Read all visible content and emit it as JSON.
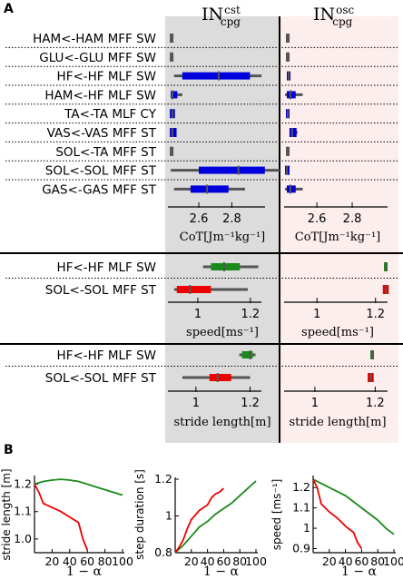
{
  "panel_a": {
    "letter": "A",
    "col1_title_main": "IN",
    "col1_title_sup": "cst",
    "col1_title_sub": "cpg",
    "col2_title_main": "IN",
    "col2_title_sup": "osc",
    "col2_title_sub": "cpg",
    "colors": {
      "left_bg": "#dcdcdc",
      "right_bg": "#fdeeee",
      "whisker": "#555555"
    }
  },
  "panel_b": {
    "letter": "B"
  },
  "chart_data": [
    {
      "type": "box",
      "group": "CoT",
      "xlabel": "CoT[Jm⁻¹kg⁻¹]",
      "xticks": [
        "2.6",
        "2.8"
      ],
      "rows": [
        {
          "label": "HAM<-HAM MFF SW",
          "color": "#555555",
          "left": {
            "whisker": [
              2.435,
              2.435
            ],
            "box": [
              2.43,
              2.44
            ],
            "median": 2.435
          },
          "right": {
            "whisker": [
              2.435,
              2.435
            ],
            "box": [
              2.43,
              2.44
            ],
            "median": 2.435
          }
        },
        {
          "label": "GLU<-GLU MFF SW",
          "color": "#555555",
          "left": {
            "whisker": [
              2.435,
              2.435
            ],
            "box": [
              2.43,
              2.44
            ],
            "median": 2.435
          },
          "right": {
            "whisker": [
              2.435,
              2.435
            ],
            "box": [
              2.43,
              2.44
            ],
            "median": 2.435
          }
        },
        {
          "label": "HF<-HF MLF SW",
          "color": "#0000dd",
          "left": {
            "whisker": [
              2.45,
              2.98
            ],
            "box": [
              2.5,
              2.91
            ],
            "median": 2.72
          },
          "right": {
            "whisker": [
              2.44,
              2.44
            ],
            "box": [
              2.435,
              2.445
            ],
            "median": 2.44
          }
        },
        {
          "label": "HAM<-HF MLF SW",
          "color": "#0000dd",
          "left": {
            "whisker": [
              2.43,
              2.5
            ],
            "box": [
              2.43,
              2.47
            ],
            "median": 2.44
          },
          "right": {
            "whisker": [
              2.42,
              2.52
            ],
            "box": [
              2.43,
              2.48
            ],
            "median": 2.45
          }
        },
        {
          "label": "TA<-TA MLF CY",
          "color": "#0000dd",
          "left": {
            "whisker": [
              2.43,
              2.45
            ],
            "box": [
              2.43,
              2.45
            ],
            "median": 2.44
          },
          "right": {
            "whisker": [
              2.435,
              2.435
            ],
            "box": [
              2.43,
              2.44
            ],
            "median": 2.435
          }
        },
        {
          "label": "VAS<-VAS MFF ST",
          "color": "#0000dd",
          "left": {
            "whisker": [
              2.43,
              2.46
            ],
            "box": [
              2.43,
              2.46
            ],
            "median": 2.44
          },
          "right": {
            "whisker": [
              2.45,
              2.49
            ],
            "box": [
              2.45,
              2.48
            ],
            "median": 2.46
          }
        },
        {
          "label": "SOL<-TA MFF ST",
          "color": "#555555",
          "left": {
            "whisker": [
              2.435,
              2.435
            ],
            "box": [
              2.43,
              2.44
            ],
            "median": 2.435
          },
          "right": {
            "whisker": [
              2.435,
              2.435
            ],
            "box": [
              2.43,
              2.44
            ],
            "median": 2.435
          }
        },
        {
          "label": "SOL<-SOL MFF ST",
          "color": "#0000dd",
          "left": {
            "whisker": [
              2.43,
              3.09
            ],
            "box": [
              2.6,
              3.0
            ],
            "median": 2.84
          },
          "right": {
            "whisker": [
              2.42,
              2.44
            ],
            "box": [
              2.425,
              2.44
            ],
            "median": 2.43
          }
        },
        {
          "label": "GAS<-GAS MFF ST",
          "color": "#0000dd",
          "left": {
            "whisker": [
              2.45,
              2.88
            ],
            "box": [
              2.55,
              2.78
            ],
            "median": 2.65
          },
          "right": {
            "whisker": [
              2.42,
              2.52
            ],
            "box": [
              2.43,
              2.48
            ],
            "median": 2.45
          }
        }
      ]
    },
    {
      "type": "box",
      "group": "speed",
      "xlabel": "speed[ms⁻¹]",
      "xticks": [
        "1",
        "1.2"
      ],
      "rows": [
        {
          "label": "HF<-HF MLF SW",
          "color": "#1a8a1a",
          "left": {
            "whisker": [
              1.02,
              1.23
            ],
            "box": [
              1.05,
              1.16
            ],
            "median": 1.1
          },
          "right": {
            "whisker": [
              1.235,
              1.235
            ],
            "box": [
              1.232,
              1.238
            ],
            "median": 1.235
          }
        },
        {
          "label": "SOL<-SOL MFF ST",
          "color": "#ee0000",
          "left": {
            "whisker": [
              0.91,
              1.19
            ],
            "box": [
              0.92,
              1.05
            ],
            "median": 0.97
          },
          "right": {
            "whisker": [
              1.23,
              1.24
            ],
            "box": [
              1.228,
              1.242
            ],
            "median": 1.235
          }
        }
      ]
    },
    {
      "type": "box",
      "group": "stride length",
      "xlabel": "stride length[m]",
      "xticks": [
        "1",
        "1.2"
      ],
      "rows": [
        {
          "label": "HF<-HF MLF SW",
          "color": "#1a8a1a",
          "left": {
            "whisker": [
              1.16,
              1.22
            ],
            "box": [
              1.17,
              1.21
            ],
            "median": 1.2
          },
          "right": {
            "whisker": [
              1.19,
              1.19
            ],
            "box": [
              1.187,
              1.193
            ],
            "median": 1.19
          }
        },
        {
          "label": "SOL<-SOL MFF ST",
          "color": "#ee0000",
          "left": {
            "whisker": [
              0.95,
              1.2
            ],
            "box": [
              1.05,
              1.13
            ],
            "median": 1.08
          },
          "right": {
            "whisker": [
              1.18,
              1.19
            ],
            "box": [
              1.178,
              1.192
            ],
            "median": 1.185
          }
        }
      ]
    },
    {
      "type": "line",
      "xlabel": "1 − α",
      "ylabel": "stride length [m]",
      "xlim": [
        0,
        100
      ],
      "ylim": [
        0.95,
        1.225
      ],
      "xticks": [
        20,
        40,
        60,
        80,
        100
      ],
      "yticks": [
        1.0,
        1.1,
        1.2
      ],
      "ytick_labels": [
        "1.0",
        "1.1",
        "1.2"
      ],
      "series": [
        {
          "color": "#1a8a1a",
          "x": [
            0,
            10,
            20,
            30,
            40,
            50,
            60,
            70,
            80,
            90,
            100
          ],
          "y": [
            1.2,
            1.21,
            1.215,
            1.218,
            1.215,
            1.21,
            1.2,
            1.19,
            1.18,
            1.17,
            1.16
          ]
        },
        {
          "color": "#ee0000",
          "x": [
            0,
            5,
            10,
            20,
            30,
            40,
            50,
            55,
            60
          ],
          "y": [
            1.2,
            1.17,
            1.13,
            1.115,
            1.1,
            1.08,
            1.06,
            1.0,
            0.96
          ]
        }
      ]
    },
    {
      "type": "line",
      "xlabel": "1 − α",
      "ylabel": "step duration [s]",
      "xlim": [
        0,
        100
      ],
      "ylim": [
        0.8,
        1.2
      ],
      "xticks": [
        20,
        40,
        60,
        80,
        100
      ],
      "yticks": [
        0.8,
        1.0,
        1.2
      ],
      "ytick_labels": [
        "0.8",
        "1",
        "1.2"
      ],
      "series": [
        {
          "color": "#1a8a1a",
          "x": [
            0,
            10,
            20,
            30,
            40,
            50,
            60,
            70,
            80,
            90,
            100
          ],
          "y": [
            0.8,
            0.84,
            0.89,
            0.94,
            0.97,
            1.01,
            1.04,
            1.07,
            1.11,
            1.15,
            1.19
          ]
        },
        {
          "color": "#ee0000",
          "x": [
            0,
            5,
            10,
            15,
            20,
            30,
            40,
            45,
            50,
            55,
            60
          ],
          "y": [
            0.8,
            0.83,
            0.87,
            0.93,
            0.98,
            1.03,
            1.06,
            1.1,
            1.12,
            1.13,
            1.15
          ]
        }
      ]
    },
    {
      "type": "line",
      "xlabel": "1 − α",
      "ylabel": "speed [ms⁻¹]",
      "xlim": [
        0,
        100
      ],
      "ylim": [
        0.88,
        1.25
      ],
      "xticks": [
        20,
        40,
        60,
        80,
        100
      ],
      "yticks": [
        0.9,
        1.0,
        1.1,
        1.2
      ],
      "ytick_labels": [
        "0.9",
        "1",
        "1.1",
        "1.2"
      ],
      "series": [
        {
          "color": "#1a8a1a",
          "x": [
            0,
            10,
            20,
            30,
            40,
            50,
            60,
            70,
            80,
            90,
            100
          ],
          "y": [
            1.24,
            1.22,
            1.2,
            1.18,
            1.16,
            1.13,
            1.1,
            1.07,
            1.04,
            1.0,
            0.97
          ]
        },
        {
          "color": "#ee0000",
          "x": [
            0,
            5,
            10,
            20,
            30,
            40,
            50,
            55,
            60
          ],
          "y": [
            1.24,
            1.2,
            1.12,
            1.08,
            1.05,
            1.01,
            0.98,
            0.93,
            0.9
          ]
        }
      ]
    }
  ]
}
